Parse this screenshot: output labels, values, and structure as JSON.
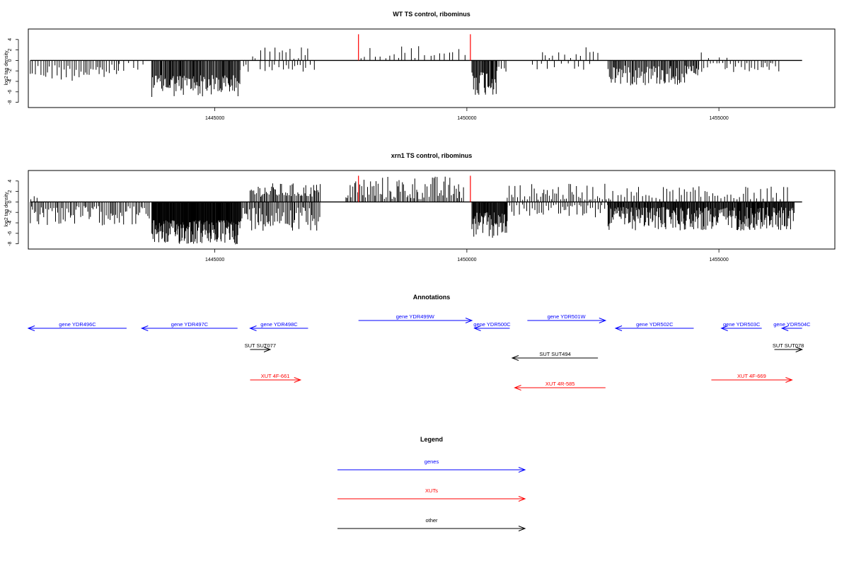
{
  "chart_data": [
    {
      "type": "bar",
      "title": "WT TS control, ribominus",
      "ylabel": "log2 tag density",
      "xlabel": "",
      "xlim": [
        1441300,
        1457300
      ],
      "ylim": [
        -9,
        6
      ],
      "yticks": [
        -8,
        -6,
        -4,
        -2,
        0,
        2,
        4
      ],
      "xticks": [
        1445000,
        1450000,
        1455000
      ],
      "xtick_labels": [
        "1445000",
        "1450000",
        "1455000"
      ],
      "grid": false,
      "marker_color": "#ff0000",
      "markers": [
        {
          "x": 1447850,
          "value": 5.0
        },
        {
          "x": 1450070,
          "value": 5.0
        }
      ],
      "segments": [
        {
          "start": 1441340,
          "end": 1443100,
          "sign": -1,
          "min": 0.8,
          "max": 4.0,
          "step": 45
        },
        {
          "start": 1443100,
          "end": 1443600,
          "sign": -1,
          "min": 0.5,
          "max": 2.2,
          "step": 90
        },
        {
          "start": 1443750,
          "end": 1445500,
          "sign": -1,
          "min": 2.8,
          "max": 7.0,
          "step": 16
        },
        {
          "start": 1445500,
          "end": 1445700,
          "sign": -1,
          "min": 0.8,
          "max": 2.5,
          "step": 60
        },
        {
          "start": 1445750,
          "end": 1446900,
          "sign": 1,
          "min": 0.3,
          "max": 2.5,
          "step": 80
        },
        {
          "start": 1445900,
          "end": 1447000,
          "sign": -1,
          "min": 0.8,
          "max": 2.5,
          "step": 70
        },
        {
          "start": 1447900,
          "end": 1450000,
          "sign": 1,
          "min": 0.4,
          "max": 3.0,
          "step": 95
        },
        {
          "start": 1450100,
          "end": 1450600,
          "sign": -1,
          "min": 2.0,
          "max": 6.8,
          "step": 16
        },
        {
          "start": 1450600,
          "end": 1450800,
          "sign": -1,
          "min": 0.8,
          "max": 2.5,
          "step": 50
        },
        {
          "start": 1451500,
          "end": 1452600,
          "sign": 1,
          "min": 0.4,
          "max": 2.8,
          "step": 90
        },
        {
          "start": 1451300,
          "end": 1452500,
          "sign": -1,
          "min": 0.5,
          "max": 2.0,
          "step": 110
        },
        {
          "start": 1452800,
          "end": 1454600,
          "sign": -1,
          "min": 1.0,
          "max": 4.8,
          "step": 20
        },
        {
          "start": 1454600,
          "end": 1456200,
          "sign": -1,
          "min": 0.5,
          "max": 2.5,
          "step": 55
        },
        {
          "start": 1454650,
          "end": 1455300,
          "sign": 1,
          "min": 0.4,
          "max": 2.3,
          "step": 180
        }
      ]
    },
    {
      "type": "bar",
      "title": "xrn1 TS control, ribominus",
      "ylabel": "log2 tag density",
      "xlabel": "",
      "xlim": [
        1441300,
        1457300
      ],
      "ylim": [
        -9,
        6
      ],
      "yticks": [
        -8,
        -6,
        -4,
        -2,
        0,
        2,
        4
      ],
      "xticks": [
        1445000,
        1450000,
        1455000
      ],
      "xtick_labels": [
        "1445000",
        "1450000",
        "1455000"
      ],
      "grid": false,
      "marker_color": "#ff0000",
      "markers": [
        {
          "x": 1447850,
          "value": 5.0
        },
        {
          "x": 1450070,
          "value": 5.0
        }
      ],
      "segments": [
        {
          "start": 1441340,
          "end": 1443700,
          "sign": -1,
          "min": 0.8,
          "max": 4.5,
          "step": 30
        },
        {
          "start": 1441350,
          "end": 1441500,
          "sign": 1,
          "min": 0.5,
          "max": 1.5,
          "step": 60
        },
        {
          "start": 1443750,
          "end": 1445500,
          "sign": -1,
          "min": 3.5,
          "max": 8.2,
          "step": 10
        },
        {
          "start": 1445500,
          "end": 1447100,
          "sign": -1,
          "min": 1.0,
          "max": 5.5,
          "step": 25
        },
        {
          "start": 1445700,
          "end": 1447100,
          "sign": 1,
          "min": 1.0,
          "max": 3.6,
          "step": 25
        },
        {
          "start": 1447600,
          "end": 1449950,
          "sign": 1,
          "min": 0.5,
          "max": 5.0,
          "step": 30
        },
        {
          "start": 1450100,
          "end": 1450800,
          "sign": -1,
          "min": 2.0,
          "max": 7.0,
          "step": 12
        },
        {
          "start": 1450800,
          "end": 1452900,
          "sign": 1,
          "min": 0.4,
          "max": 3.5,
          "step": 40
        },
        {
          "start": 1450800,
          "end": 1452900,
          "sign": -1,
          "min": 0.5,
          "max": 3.0,
          "step": 45
        },
        {
          "start": 1452800,
          "end": 1456500,
          "sign": -1,
          "min": 1.0,
          "max": 5.5,
          "step": 13
        },
        {
          "start": 1453000,
          "end": 1456400,
          "sign": 1,
          "min": 0.5,
          "max": 3.0,
          "step": 60
        }
      ]
    }
  ],
  "annotations": {
    "title": "Annotations",
    "features": [
      {
        "label": "gene YDR496C",
        "type": "gene",
        "start": 1441300,
        "end": 1443250,
        "strand": "-",
        "row": 1
      },
      {
        "label": "gene YDR497C",
        "type": "gene",
        "start": 1443550,
        "end": 1445450,
        "strand": "-",
        "row": 1
      },
      {
        "label": "gene YDR498C",
        "type": "gene",
        "start": 1445700,
        "end": 1446850,
        "strand": "-",
        "row": 1
      },
      {
        "label": "gene YDR499W",
        "type": "gene",
        "start": 1447850,
        "end": 1450100,
        "strand": "+",
        "row": 0
      },
      {
        "label": "gene YDR500C",
        "type": "gene",
        "start": 1450150,
        "end": 1450850,
        "strand": "-",
        "row": 1
      },
      {
        "label": "gene YDR501W",
        "type": "gene",
        "start": 1451200,
        "end": 1452750,
        "strand": "+",
        "row": 0
      },
      {
        "label": "gene YDR502C",
        "type": "gene",
        "start": 1452950,
        "end": 1454500,
        "strand": "-",
        "row": 1
      },
      {
        "label": "gene YDR503C",
        "type": "gene",
        "start": 1455050,
        "end": 1455850,
        "strand": "-",
        "row": 1
      },
      {
        "label": "gene YDR504C",
        "type": "gene",
        "start": 1456250,
        "end": 1456650,
        "strand": "-",
        "row": 1
      },
      {
        "label": "SUT SUT077",
        "type": "other",
        "start": 1445700,
        "end": 1446100,
        "strand": "+",
        "row": 2
      },
      {
        "label": "SUT SUT494",
        "type": "other",
        "start": 1450900,
        "end": 1452600,
        "strand": "-",
        "row": 3
      },
      {
        "label": "SUT SUT078",
        "type": "other",
        "start": 1456100,
        "end": 1456650,
        "strand": "+",
        "row": 2
      },
      {
        "label": "XUT 4F-661",
        "type": "xut",
        "start": 1445700,
        "end": 1446700,
        "strand": "+",
        "row": 4
      },
      {
        "label": "XUT 4R-585",
        "type": "xut",
        "start": 1450950,
        "end": 1452750,
        "strand": "-",
        "row": 5
      },
      {
        "label": "XUT 4F-669",
        "type": "xut",
        "start": 1454850,
        "end": 1456450,
        "strand": "+",
        "row": 4
      }
    ]
  },
  "legend": {
    "title": "Legend",
    "items": [
      {
        "label": "genes",
        "type": "gene"
      },
      {
        "label": "XUTs",
        "type": "xut"
      },
      {
        "label": "other",
        "type": "other"
      }
    ]
  },
  "colors": {
    "gene": "#0000ff",
    "xut": "#ff0000",
    "other": "#000000"
  }
}
